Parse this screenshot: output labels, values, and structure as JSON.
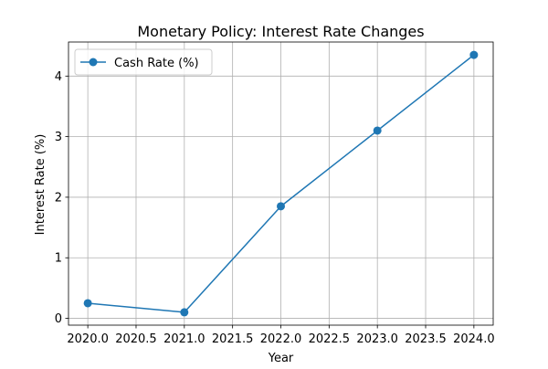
{
  "chart_data": {
    "type": "line",
    "title": "Monetary Policy: Interest Rate Changes",
    "xlabel": "Year",
    "ylabel": "Interest Rate (%)",
    "x": [
      2020,
      2021,
      2022,
      2023,
      2024
    ],
    "series": [
      {
        "name": "Cash Rate (%)",
        "values": [
          0.25,
          0.1,
          1.85,
          3.1,
          4.35
        ],
        "color": "#1f77b4",
        "marker": "circle"
      }
    ],
    "xlim": [
      2019.8,
      2024.2
    ],
    "ylim": [
      -0.1125,
      4.5625
    ],
    "xticks": [
      2020.0,
      2020.5,
      2021.0,
      2021.5,
      2022.0,
      2022.5,
      2023.0,
      2023.5,
      2024.0
    ],
    "xtick_labels": [
      "2020.0",
      "2020.5",
      "2021.0",
      "2021.5",
      "2022.0",
      "2022.5",
      "2023.0",
      "2023.5",
      "2024.0"
    ],
    "yticks": [
      0,
      1,
      2,
      3,
      4
    ],
    "ytick_labels": [
      "0",
      "1",
      "2",
      "3",
      "4"
    ],
    "grid": true,
    "legend": "top-left"
  }
}
